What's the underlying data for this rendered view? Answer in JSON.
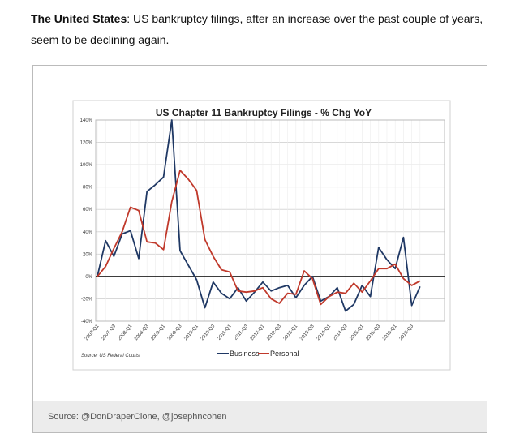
{
  "intro": {
    "bold": "The United States",
    "text": ": US bankruptcy filings, after an increase over the past couple of years, seem to be declining again."
  },
  "footer": {
    "source": "Source: @DonDraperClone, @josephncohen"
  },
  "chart_data": {
    "type": "line",
    "title": "US Chapter 11 Bankruptcy Filings - % Chg YoY",
    "note": "Source: US Federal Courts",
    "categories": [
      "2007-Q1",
      null,
      "2007-Q3",
      null,
      "2008-Q1",
      null,
      "2008-Q3",
      null,
      "2009-Q1",
      null,
      "2009-Q3",
      null,
      "2010-Q1",
      null,
      "2010-Q3",
      null,
      "2011-Q1",
      null,
      "2011-Q3",
      null,
      "2012-Q1",
      null,
      "2012-Q3",
      null,
      "2013-Q1",
      null,
      "2013-Q3",
      null,
      "2014-Q1",
      null,
      "2014-Q3",
      null,
      "2015-Q1",
      null,
      "2015-Q3",
      null,
      "2016-Q1",
      null,
      "2016-Q3",
      null
    ],
    "series": [
      {
        "name": "Business",
        "color": "#1f3864",
        "values": [
          0,
          32,
          18,
          38,
          41,
          16,
          76,
          82,
          89,
          140,
          23,
          10,
          -3,
          -28,
          -5,
          -15,
          -20,
          -10,
          -22,
          -14,
          -5,
          -13,
          -10,
          -8,
          -19,
          -8,
          0,
          -22,
          -18,
          -10,
          -31,
          -25,
          -8,
          -18,
          26,
          15,
          7,
          35,
          -26,
          -9
        ]
      },
      {
        "name": "Personal",
        "color": "#c0392b",
        "values": [
          0,
          9,
          25,
          40,
          62,
          59,
          31,
          30,
          24,
          67,
          95,
          87,
          77,
          33,
          18,
          6,
          4,
          -13,
          -14,
          -13,
          -10,
          -20,
          -24,
          -15,
          -16,
          5,
          -2,
          -25,
          -18,
          -14,
          -15,
          -6,
          -14,
          -4,
          7,
          7,
          11,
          -2,
          -8,
          -4
        ]
      }
    ],
    "ylim": [
      -40,
      140
    ],
    "yticks": [
      {
        "value": -40,
        "label": "-40%"
      },
      {
        "value": -20,
        "label": "-20%"
      },
      {
        "value": 0,
        "label": "0%"
      },
      {
        "value": 20,
        "label": "20%"
      },
      {
        "value": 40,
        "label": "40%"
      },
      {
        "value": 60,
        "label": "60%"
      },
      {
        "value": 80,
        "label": "80%"
      },
      {
        "value": 100,
        "label": "100%"
      },
      {
        "value": 120,
        "label": "120%"
      },
      {
        "value": 140,
        "label": "140%"
      }
    ],
    "grid": true,
    "legend": "bottom"
  }
}
